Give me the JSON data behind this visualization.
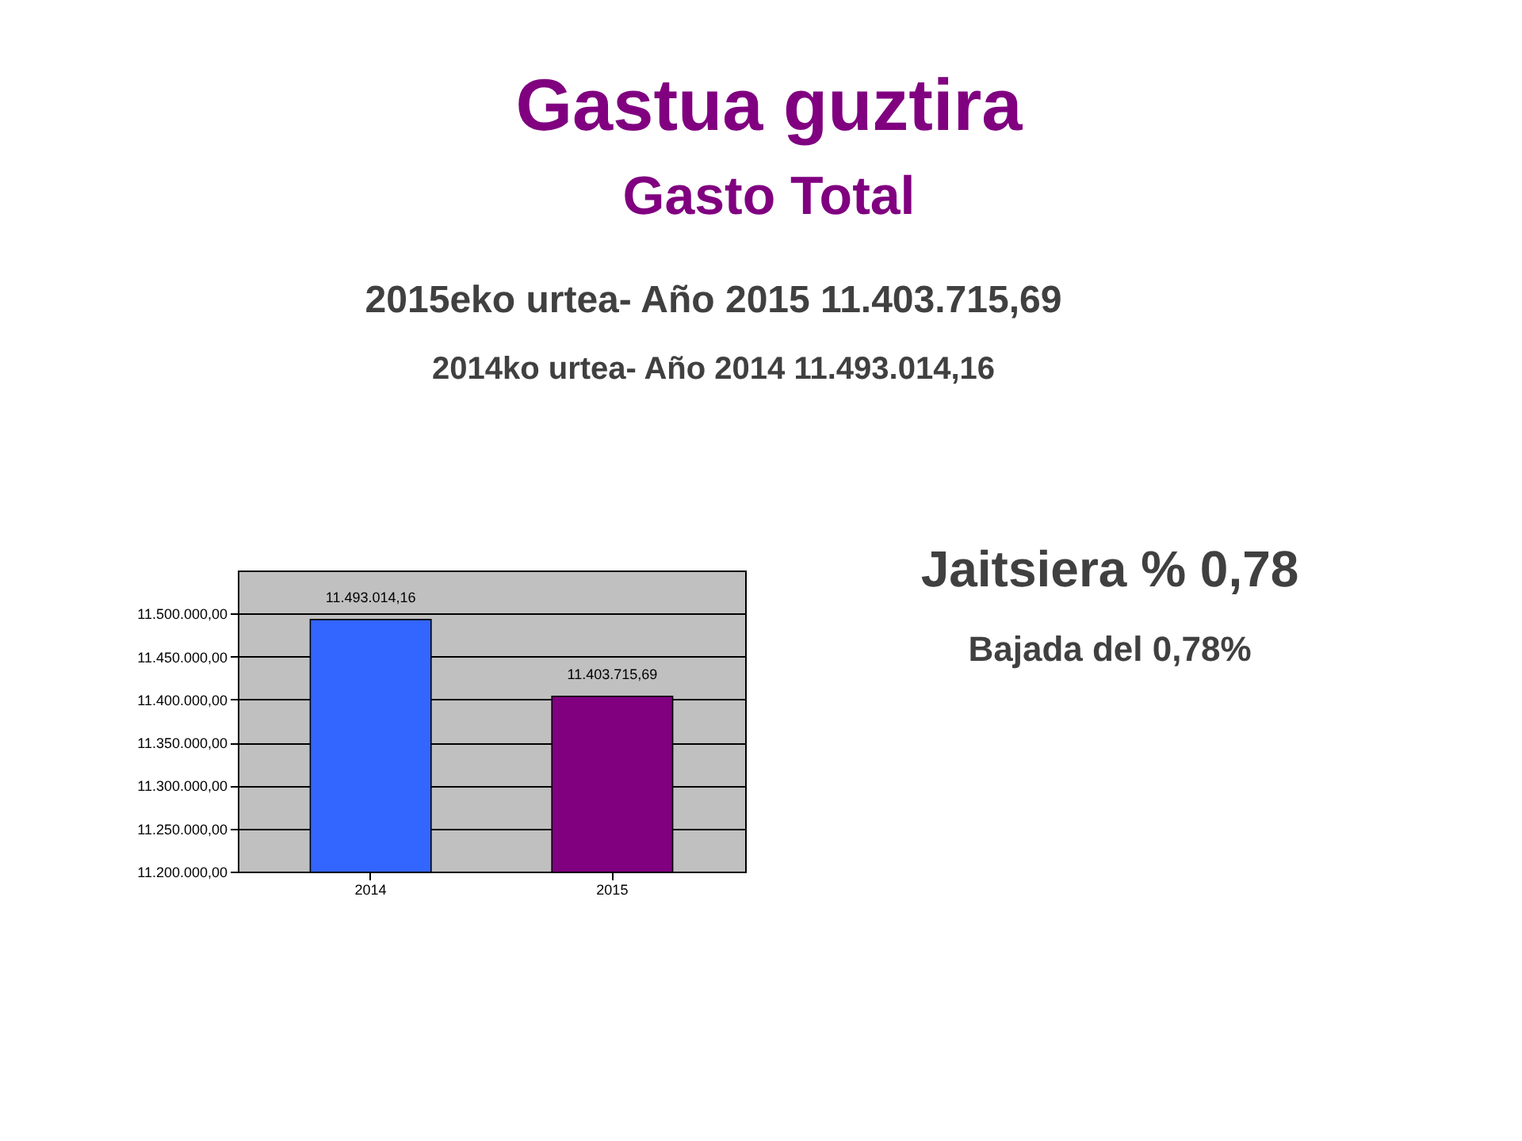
{
  "chart_data": {
    "type": "bar",
    "title": "Gastua guztira",
    "subtitle": "Gasto Total",
    "annotations": [
      "2015eko urtea- Año 2015   11.403.715,69",
      "2014ko urtea- Año 2014   11.493.014,16",
      "Jaitsiera % 0,78",
      "Bajada del 0,78%"
    ],
    "categories": [
      "2014",
      "2015"
    ],
    "values": [
      11493014.16,
      11403715.69
    ],
    "colors": [
      "#3366ff",
      "#800080"
    ],
    "value_labels": [
      "11.493.014,16",
      "11.403.715,69"
    ],
    "ylim": [
      11200000,
      11550000
    ],
    "yticks": [
      {
        "value": 11200000,
        "label": "11.200.000,00"
      },
      {
        "value": 11250000,
        "label": "11.250.000,00"
      },
      {
        "value": 11300000,
        "label": "11.300.000,00"
      },
      {
        "value": 11350000,
        "label": "11.350.000,00"
      },
      {
        "value": 11400000,
        "label": "11.400.000,00"
      },
      {
        "value": 11450000,
        "label": "11.450.000,00"
      },
      {
        "value": 11500000,
        "label": "11.500.000,00"
      }
    ],
    "grid": "y"
  }
}
